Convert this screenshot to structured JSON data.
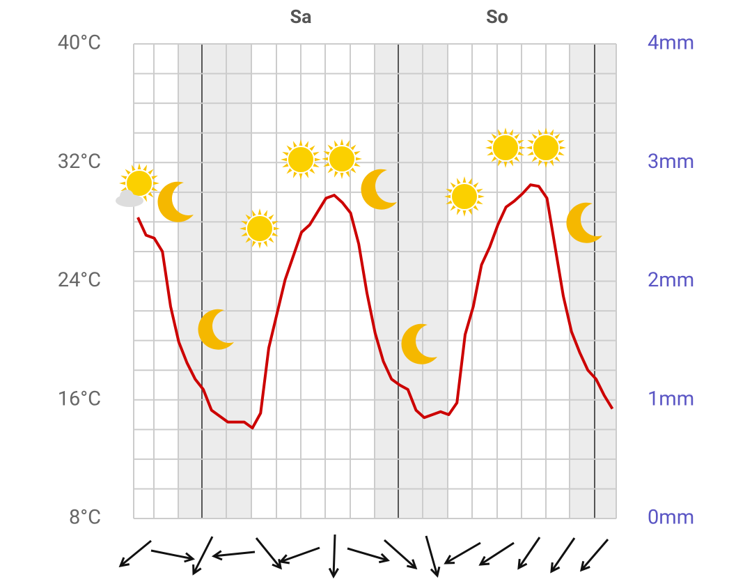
{
  "chart_data": {
    "type": "line",
    "days": [
      "Sa",
      "So"
    ],
    "series": [
      {
        "color": "#cc0000",
        "values": [
          28.3,
          27.1,
          26.9,
          26.0,
          22.3,
          19.9,
          18.5,
          17.4,
          16.7,
          15.3,
          14.9,
          14.5,
          14.5,
          14.5,
          14.1,
          15.1,
          19.5,
          21.8,
          24.1,
          25.7,
          27.3,
          27.8,
          28.7,
          29.6,
          29.8,
          29.3,
          28.6,
          26.5,
          23.2,
          20.5,
          18.6,
          17.4,
          17.0,
          16.7,
          15.3,
          14.8,
          15.0,
          15.2,
          15.0,
          15.8,
          20.4,
          22.3,
          25.1,
          26.3,
          27.8,
          29.0,
          29.4,
          29.9,
          30.5,
          30.4,
          29.6,
          26.3,
          23.0,
          20.6,
          19.2,
          18.0,
          17.4,
          16.3,
          15.4
        ]
      }
    ],
    "ylim": [
      8,
      40
    ],
    "yticks": [
      {
        "value": 8,
        "label": "8°C"
      },
      {
        "value": 16,
        "label": "16°C"
      },
      {
        "value": 24,
        "label": "24°C"
      },
      {
        "value": 32,
        "label": "32°C"
      },
      {
        "value": 40,
        "label": "40°C"
      }
    ],
    "yminor": [
      10,
      12,
      14,
      18,
      20,
      22,
      26,
      28,
      30,
      34,
      36,
      38
    ],
    "y2lim": [
      0,
      4
    ],
    "y2ticks": [
      {
        "value": 0,
        "label": "0mm"
      },
      {
        "value": 1,
        "label": "1mm"
      },
      {
        "value": 2,
        "label": "2mm"
      },
      {
        "value": 3,
        "label": "3mm"
      },
      {
        "value": 4,
        "label": "4mm"
      }
    ],
    "grid": true
  }
}
